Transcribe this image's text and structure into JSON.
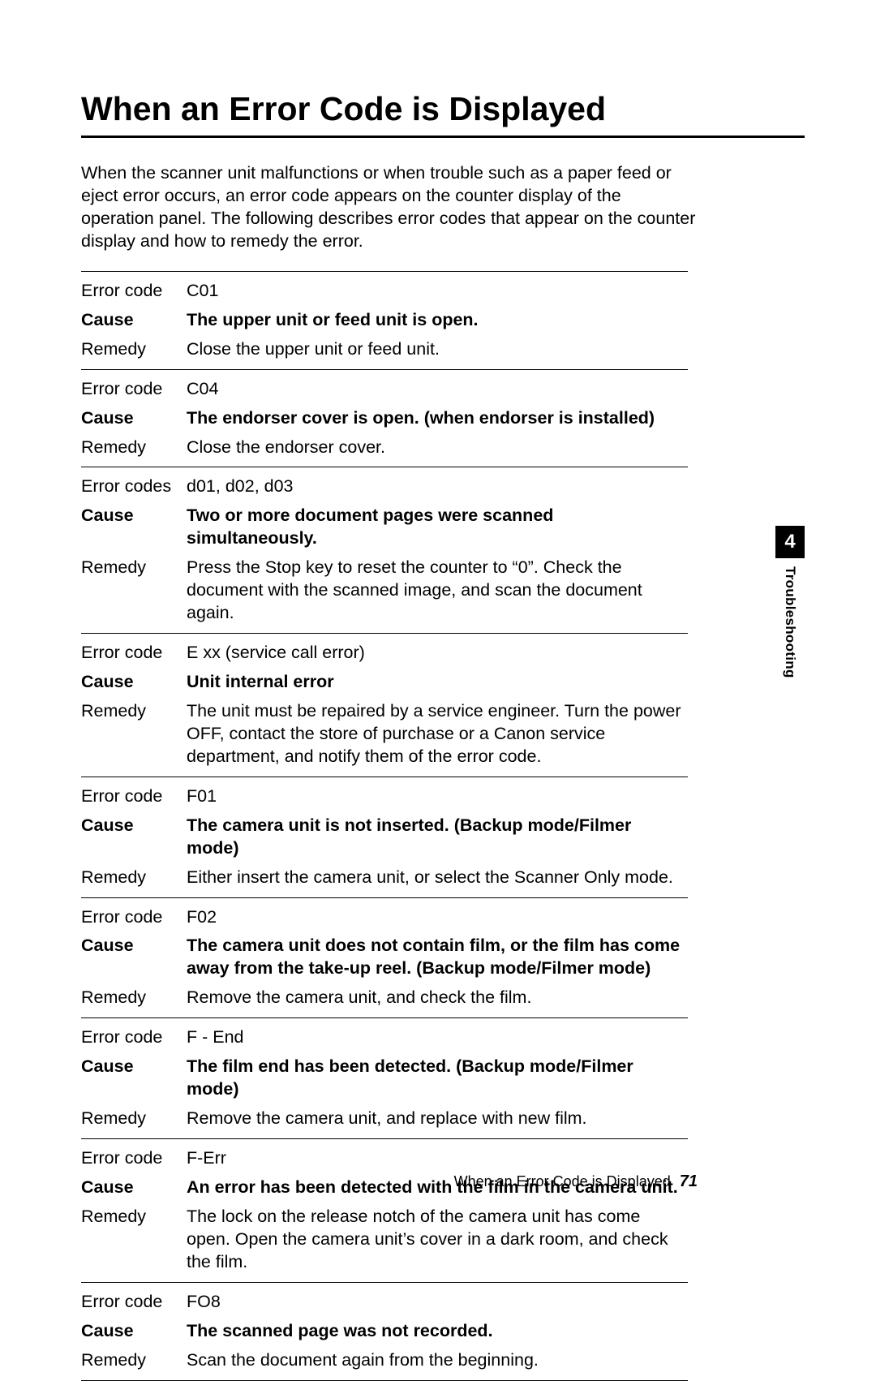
{
  "title": "When an Error Code is Displayed",
  "intro": "When the scanner unit malfunctions or when trouble such as a paper feed or eject error occurs, an error code appears on the counter display of the operation panel. The following describes error codes that appear on the counter display and how to remedy the error.",
  "labels": {
    "errorcode": "Error code",
    "errorcodes": "Error codes",
    "cause": "Cause",
    "remedy": "Remedy"
  },
  "errors": [
    {
      "codeLabel": "Error code",
      "code": "C01",
      "cause": "The upper unit or feed unit is open.",
      "remedy": "Close the upper unit or feed unit."
    },
    {
      "codeLabel": "Error code",
      "code": "C04",
      "cause": "The endorser cover is open. (when endorser is installed)",
      "remedy": "Close the endorser cover."
    },
    {
      "codeLabel": "Error codes",
      "code": "d01, d02, d03",
      "cause": "Two or more document pages were scanned simultaneously.",
      "remedy": "Press the Stop key to reset the counter to “0”. Check the document with the scanned image, and scan the document again."
    },
    {
      "codeLabel": "Error code",
      "code": "E xx (service call error)",
      "cause": "Unit internal error",
      "remedy": "The unit must be repaired by a service engineer. Turn the power OFF, contact the store of purchase or a Canon service department, and notify them of the error code."
    },
    {
      "codeLabel": "Error code",
      "code": "F01",
      "cause": "The camera unit is not inserted. (Backup mode/Filmer mode)",
      "remedy": "Either insert the camera unit, or select the Scanner Only mode."
    },
    {
      "codeLabel": "Error code",
      "code": "F02",
      "cause": "The camera unit does not contain film, or the film has come away from the take-up reel. (Backup mode/Filmer mode)",
      "remedy": "Remove the camera unit, and check the film."
    },
    {
      "codeLabel": "Error code",
      "code": "F - End",
      "cause": "The film end has been detected. (Backup mode/Filmer mode)",
      "remedy": "Remove the camera unit, and replace with new film."
    },
    {
      "codeLabel": "Error code",
      "code": "F-Err",
      "cause": "An error has been detected with the film in the camera unit.",
      "remedy": "The lock on the release notch of the camera unit has come open. Open the camera unit’s cover in a dark room, and check the film."
    },
    {
      "codeLabel": "Error code",
      "code": "FO8",
      "cause": "The scanned page was not recorded.",
      "remedy": "Scan the document again from the beginning."
    }
  ],
  "sideTab": {
    "number": "4",
    "label": "Troubleshooting"
  },
  "footer": {
    "text": "When an Error Code is Displayed",
    "page": "71"
  }
}
